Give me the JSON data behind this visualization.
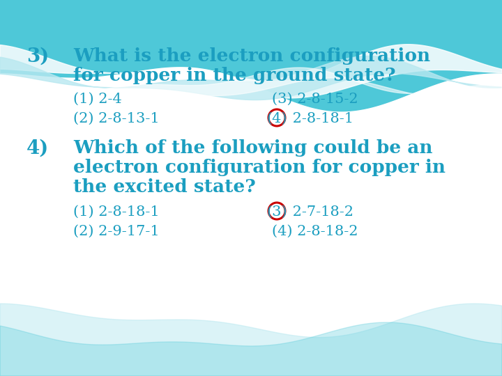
{
  "bg_color": "#ffffff",
  "text_color": "#1b9ec0",
  "q3_number": "3)",
  "q3_q1": "What is the electron configuration",
  "q3_q2": "for copper in the ground state?",
  "q3_opt1": "(1) 2-4",
  "q3_opt2": "(2) 2-8-13-1",
  "q3_opt3": "(3) 2-8-15-2",
  "q3_opt4_prefix": "(4)",
  "q3_opt4_suffix": "2-8-18-1",
  "q4_number": "4)",
  "q4_q1": "Which of the following could be an",
  "q4_q2": "electron configuration for copper in",
  "q4_q3": "the excited state?",
  "q4_opt1": "(1) 2-8-18-1",
  "q4_opt2": "(2) 2-9-17-1",
  "q4_opt3_prefix": "(3)",
  "q4_opt3_suffix": "2-7-18-2",
  "q4_opt4": "(4) 2-8-18-2",
  "circle_color": "#cc0000",
  "wave_teal": "#4ec8d8",
  "wave_light": "#b8e8f0",
  "wave_white": "#dff4f8",
  "fs_num": 20,
  "fs_q": 19,
  "fs_opt": 15
}
